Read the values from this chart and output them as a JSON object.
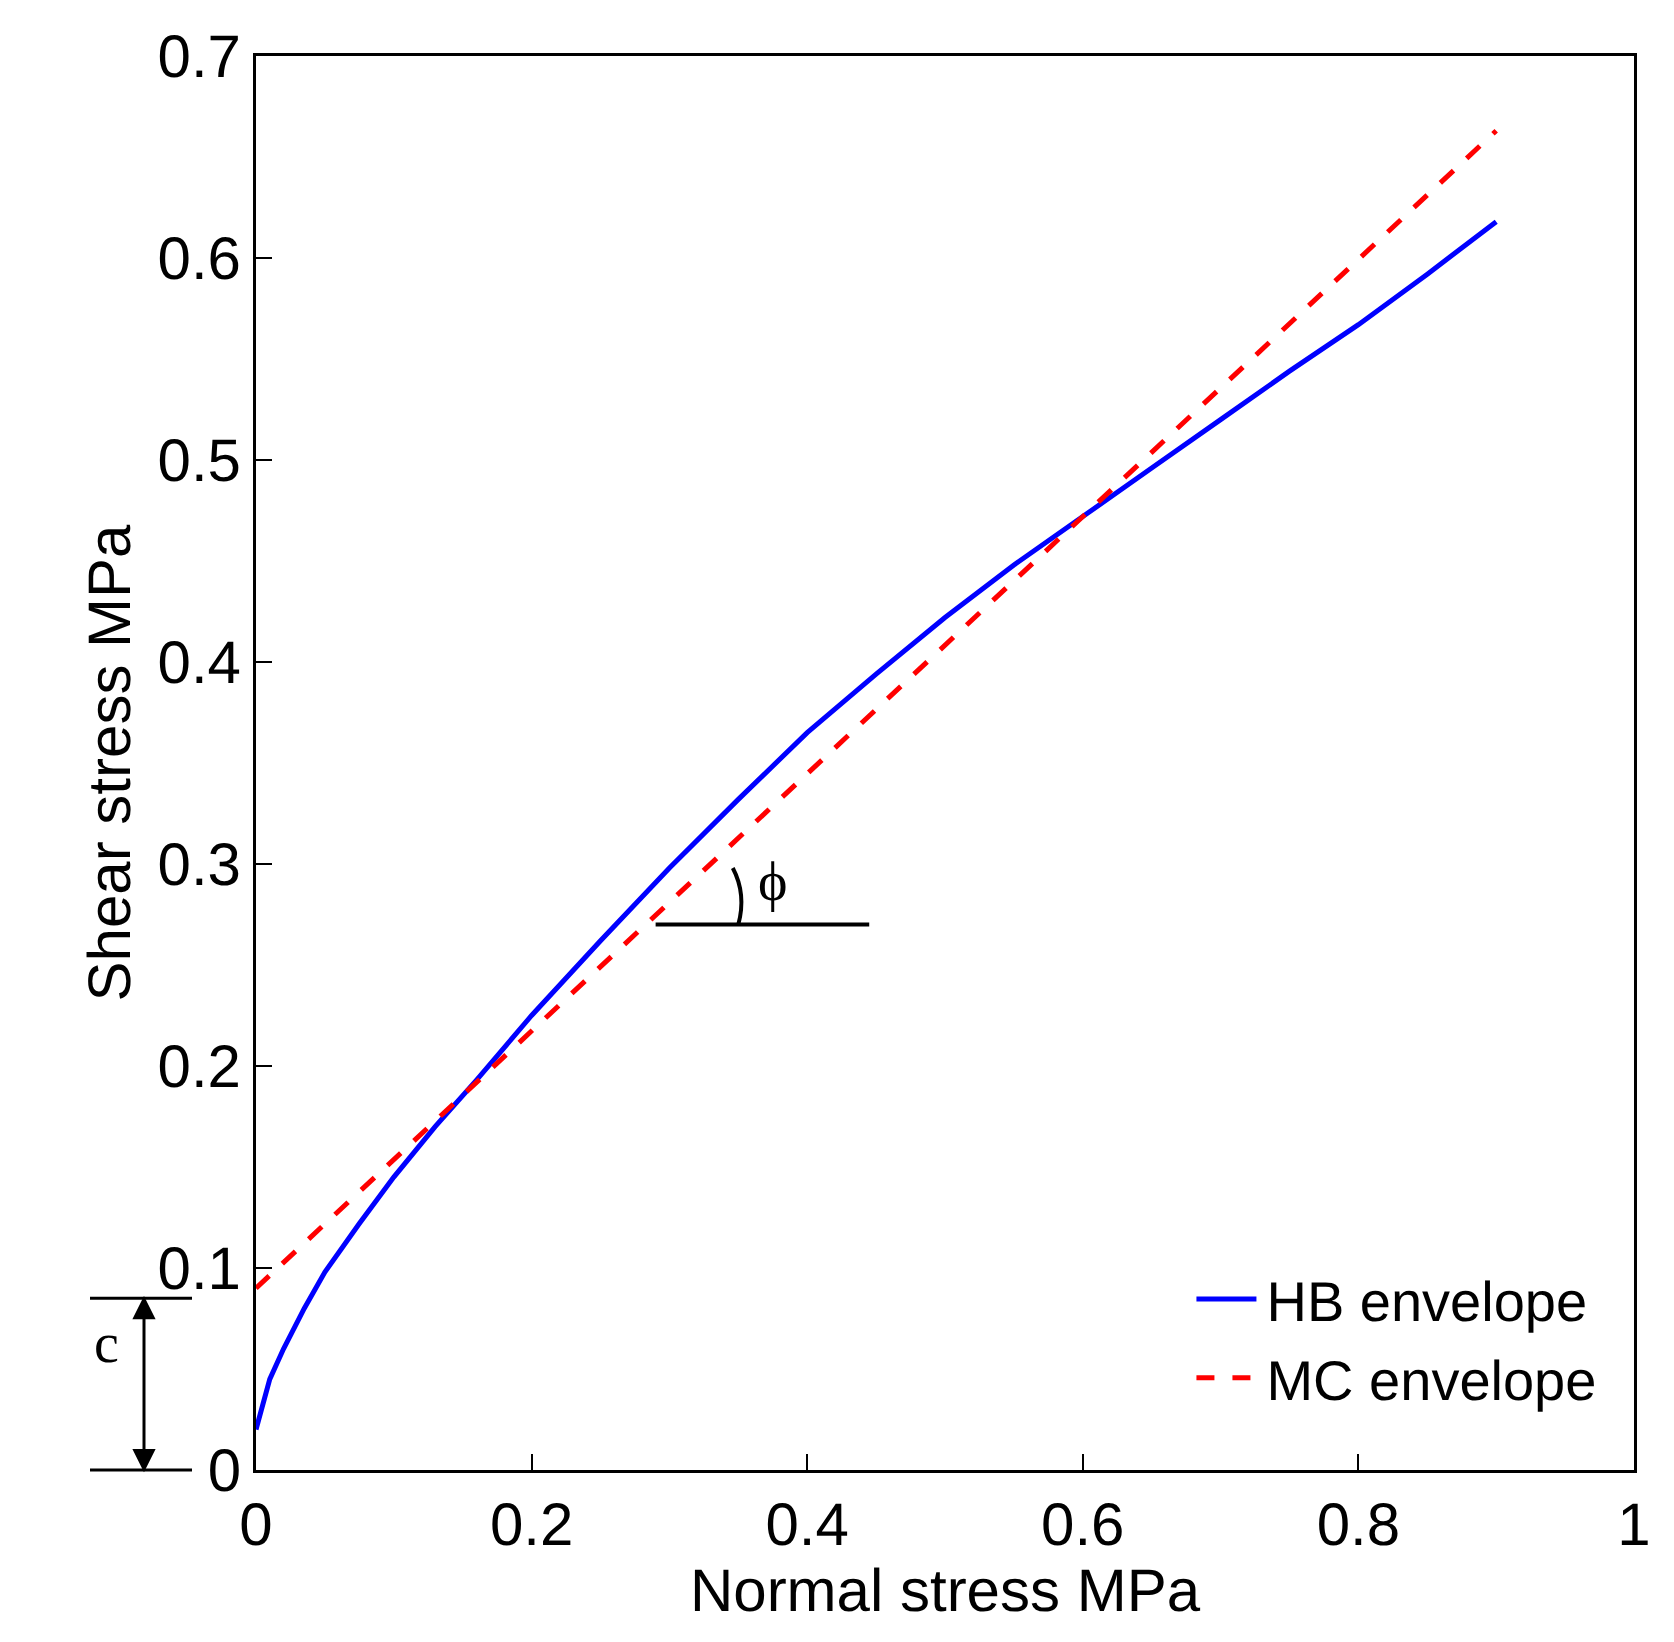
{
  "chart_data": {
    "type": "line",
    "xlabel": "Normal stress MPa",
    "ylabel": "Shear stress MPa",
    "xlim": [
      0,
      1
    ],
    "xticks": [
      0,
      0.2,
      0.4,
      0.6,
      0.8,
      1
    ],
    "ylim": [
      0,
      0.7
    ],
    "yticks": [
      0,
      0.1,
      0.2,
      0.3,
      0.4,
      0.5,
      0.6,
      0.7
    ],
    "grid": false,
    "legend": "bottom right",
    "marker": "none",
    "series": [
      {
        "name": "HB envelope",
        "color": "#0000ff",
        "line_style": "solid",
        "x": [
          0,
          0.01,
          0.02,
          0.035,
          0.05,
          0.075,
          0.1,
          0.13,
          0.16,
          0.2,
          0.25,
          0.3,
          0.35,
          0.4,
          0.45,
          0.5,
          0.55,
          0.6,
          0.65,
          0.7,
          0.75,
          0.8,
          0.85,
          0.9
        ],
        "values": [
          0.02,
          0.045,
          0.06,
          0.08,
          0.098,
          0.122,
          0.145,
          0.17,
          0.193,
          0.225,
          0.262,
          0.298,
          0.332,
          0.365,
          0.394,
          0.422,
          0.448,
          0.472,
          0.496,
          0.52,
          0.544,
          0.567,
          0.592,
          0.618
        ]
      },
      {
        "name": "MC envelope",
        "color": "#ff0000",
        "line_style": "dashed",
        "x": [
          0,
          0.9
        ],
        "values": [
          0.09,
          0.663
        ]
      }
    ],
    "annotations": [
      "ϕ",
      "c"
    ]
  }
}
